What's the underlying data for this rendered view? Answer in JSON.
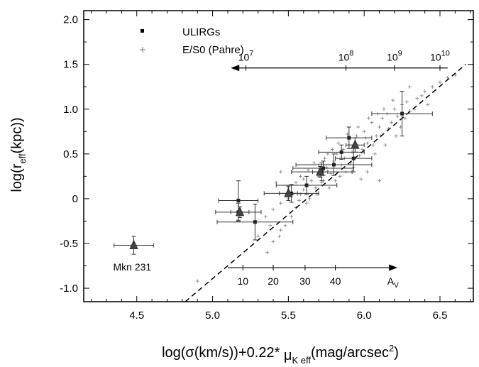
{
  "chart_data": {
    "type": "scatter",
    "xlabel": "log(σ(km/s))+0.22*",
    "xlabel_mu": "μ",
    "xlabel_mu_sub": "K eff",
    "xlabel_tail": "(mag/arcsec",
    "xlabel_sup": "2",
    "xlabel_close": ")",
    "ylabel_main": "log(r",
    "ylabel_sub": "eff",
    "ylabel_tail": "(kpc))",
    "xlim": [
      4.15,
      6.72
    ],
    "ylim": [
      -1.15,
      2.1
    ],
    "x_ticks": [
      4.5,
      5.0,
      5.5,
      6.0,
      6.5
    ],
    "x_tick_labels": [
      "4.5",
      "5.0",
      "5.5",
      "6.0",
      "6.5"
    ],
    "y_ticks": [
      -1.0,
      -0.5,
      0,
      0.5,
      1.0,
      1.5,
      2.0
    ],
    "y_tick_labels": [
      "-1.0",
      "-0.5",
      "0",
      "0.5",
      "1.0",
      "1.5",
      "2.0"
    ],
    "legend": {
      "position": "top-left",
      "entries": [
        {
          "label": "ULIRGs",
          "marker": "square"
        },
        {
          "label": "E/S0 (Pahre)",
          "marker": "plus"
        }
      ]
    },
    "fit_line": {
      "style": "dashed",
      "x": [
        4.82,
        6.67
      ],
      "y": [
        -1.15,
        1.5
      ]
    },
    "mass_arrow": {
      "from_x": 6.55,
      "to_x": 5.12,
      "y": 1.46,
      "tick_positions": [
        5.22,
        5.88,
        6.2,
        6.5
      ],
      "labels": [
        {
          "base": "10",
          "exp": "7",
          "x": 5.22
        },
        {
          "base": "10",
          "exp": "8",
          "x": 5.88
        },
        {
          "base": "10",
          "exp": "9",
          "x": 6.2
        },
        {
          "base": "10",
          "exp": "10",
          "x": 6.5
        }
      ]
    },
    "av_arrow": {
      "from_x": 5.1,
      "to_x": 6.22,
      "y": -0.77,
      "ticks": [
        {
          "x": 5.2,
          "label": "10"
        },
        {
          "x": 5.4,
          "label": "20"
        },
        {
          "x": 5.61,
          "label": "30"
        },
        {
          "x": 5.81,
          "label": "40"
        }
      ],
      "label_main": "A",
      "label_sub": "V",
      "label_x": 6.19
    },
    "annotation": {
      "text": "Mkn 231",
      "x": 4.47,
      "y": -0.8
    },
    "ulirgs": [
      {
        "x": 5.17,
        "y": -0.02,
        "xerr": 0.13,
        "yerr": 0.22
      },
      {
        "x": 5.17,
        "y": -0.15,
        "xerr": 0.15,
        "yerr": 0.1
      },
      {
        "x": 5.28,
        "y": -0.26,
        "xerr": 0.25,
        "yerr": 0.2
      },
      {
        "x": 5.52,
        "y": 0.06,
        "xerr": 0.18,
        "yerr": 0.1
      },
      {
        "x": 5.62,
        "y": 0.15,
        "xerr": 0.2,
        "yerr": 0.1
      },
      {
        "x": 5.72,
        "y": 0.3,
        "xerr": 0.2,
        "yerr": 0.1
      },
      {
        "x": 5.73,
        "y": 0.34,
        "xerr": 0.2,
        "yerr": 0.08
      },
      {
        "x": 5.8,
        "y": 0.38,
        "xerr": 0.25,
        "yerr": 0.12
      },
      {
        "x": 5.85,
        "y": 0.52,
        "xerr": 0.15,
        "yerr": 0.08
      },
      {
        "x": 5.9,
        "y": 0.68,
        "xerr": 0.15,
        "yerr": 0.12
      },
      {
        "x": 5.93,
        "y": 0.45,
        "xerr": 0.12,
        "yerr": 0.15
      },
      {
        "x": 6.25,
        "y": 0.95,
        "xerr": 0.2,
        "yerr": 0.25
      }
    ],
    "triangles": [
      {
        "x": 4.48,
        "y": -0.52,
        "xerr": 0.13,
        "yerr": 0.1
      },
      {
        "x": 5.18,
        "y": -0.15,
        "xerr": 0.06,
        "yerr": 0.06
      },
      {
        "x": 5.5,
        "y": 0.06,
        "xerr": 0.06,
        "yerr": 0.08
      },
      {
        "x": 5.71,
        "y": 0.3,
        "xerr": 0.05,
        "yerr": 0.06
      },
      {
        "x": 5.94,
        "y": 0.6,
        "xerr": 0.06,
        "yerr": 0.08
      }
    ],
    "es0_points": [
      [
        4.9,
        -0.92
      ],
      [
        5.4,
        -0.48
      ],
      [
        5.36,
        -0.6
      ],
      [
        5.45,
        -0.35
      ],
      [
        5.48,
        -0.3
      ],
      [
        5.4,
        -0.12
      ],
      [
        5.45,
        -0.05
      ],
      [
        5.5,
        0.0
      ],
      [
        5.55,
        -0.1
      ],
      [
        5.52,
        -0.2
      ],
      [
        5.58,
        0.05
      ],
      [
        5.6,
        0.1
      ],
      [
        5.62,
        -0.05
      ],
      [
        5.55,
        0.18
      ],
      [
        5.58,
        0.25
      ],
      [
        5.65,
        0.2
      ],
      [
        5.68,
        0.12
      ],
      [
        5.7,
        0.25
      ],
      [
        5.72,
        0.18
      ],
      [
        5.66,
        0.3
      ],
      [
        5.75,
        0.35
      ],
      [
        5.78,
        0.28
      ],
      [
        5.8,
        0.42
      ],
      [
        5.74,
        0.45
      ],
      [
        5.82,
        0.5
      ],
      [
        5.85,
        0.38
      ],
      [
        5.86,
        0.55
      ],
      [
        5.88,
        0.3
      ],
      [
        5.9,
        0.6
      ],
      [
        5.92,
        0.52
      ],
      [
        5.95,
        0.7
      ],
      [
        5.97,
        0.48
      ],
      [
        6.0,
        0.75
      ],
      [
        6.02,
        0.62
      ],
      [
        6.05,
        0.85
      ],
      [
        6.08,
        0.7
      ],
      [
        6.1,
        0.8
      ],
      [
        6.12,
        0.9
      ],
      [
        6.15,
        0.95
      ],
      [
        6.18,
        0.85
      ],
      [
        6.2,
        1.0
      ],
      [
        6.22,
        0.92
      ],
      [
        6.25,
        1.05
      ],
      [
        6.28,
        1.08
      ],
      [
        6.3,
        0.98
      ],
      [
        6.35,
        1.12
      ],
      [
        6.4,
        1.2
      ],
      [
        6.45,
        1.25
      ],
      [
        6.5,
        1.3
      ],
      [
        6.55,
        1.35
      ],
      [
        5.5,
        0.12
      ],
      [
        5.53,
        0.05
      ],
      [
        5.6,
        0.22
      ],
      [
        5.63,
        0.32
      ],
      [
        5.67,
        0.4
      ],
      [
        5.7,
        0.38
      ],
      [
        5.73,
        0.2
      ],
      [
        5.76,
        0.5
      ],
      [
        5.79,
        0.55
      ],
      [
        5.83,
        0.62
      ],
      [
        5.87,
        0.45
      ],
      [
        5.89,
        0.72
      ],
      [
        5.91,
        0.4
      ],
      [
        5.94,
        0.58
      ],
      [
        5.96,
        0.8
      ],
      [
        5.99,
        0.55
      ],
      [
        6.01,
        0.68
      ],
      [
        6.03,
        0.9
      ],
      [
        6.06,
        0.6
      ],
      [
        6.09,
        0.95
      ],
      [
        6.11,
        0.7
      ],
      [
        6.13,
        1.0
      ],
      [
        6.16,
        0.78
      ],
      [
        6.19,
        1.1
      ],
      [
        6.24,
        0.8
      ],
      [
        6.1,
        0.2
      ],
      [
        6.02,
        0.3
      ],
      [
        5.98,
        0.22
      ],
      [
        5.45,
        0.3
      ],
      [
        5.42,
        0.18
      ],
      [
        5.3,
        -0.42
      ],
      [
        5.35,
        -0.2
      ],
      [
        5.38,
        -0.3
      ],
      [
        5.44,
        -0.42
      ],
      [
        5.57,
        -0.02
      ],
      [
        5.64,
        0.0
      ],
      [
        5.69,
        0.05
      ],
      [
        5.77,
        0.12
      ],
      [
        5.81,
        0.2
      ],
      [
        5.84,
        0.25
      ],
      [
        5.93,
        0.35
      ],
      [
        6.07,
        0.5
      ],
      [
        6.14,
        0.6
      ],
      [
        6.21,
        0.7
      ],
      [
        6.27,
        0.9
      ],
      [
        6.33,
        1.0
      ],
      [
        6.38,
        1.15
      ],
      [
        6.42,
        1.05
      ],
      [
        6.6,
        1.38
      ],
      [
        6.3,
        1.25
      ]
    ]
  }
}
